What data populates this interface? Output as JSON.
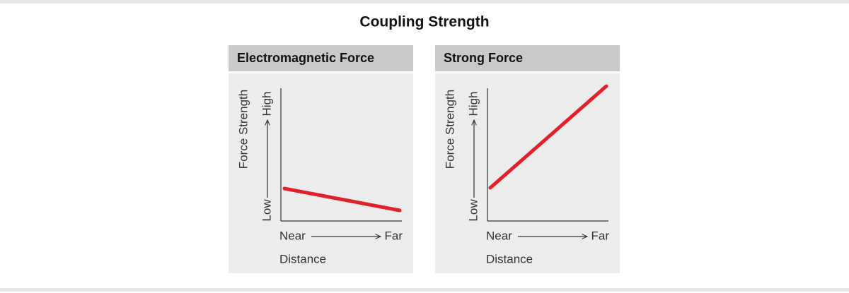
{
  "title": "Coupling Strength",
  "panels": [
    {
      "title": "Electromagnetic Force",
      "y_label": "Force Strength",
      "y_low": "Low",
      "y_high": "High",
      "x_near": "Near",
      "x_far": "Far",
      "x_label": "Distance"
    },
    {
      "title": "Strong Force",
      "y_label": "Force Strength",
      "y_low": "Low",
      "y_high": "High",
      "x_near": "Near",
      "x_far": "Far",
      "x_label": "Distance"
    }
  ]
}
